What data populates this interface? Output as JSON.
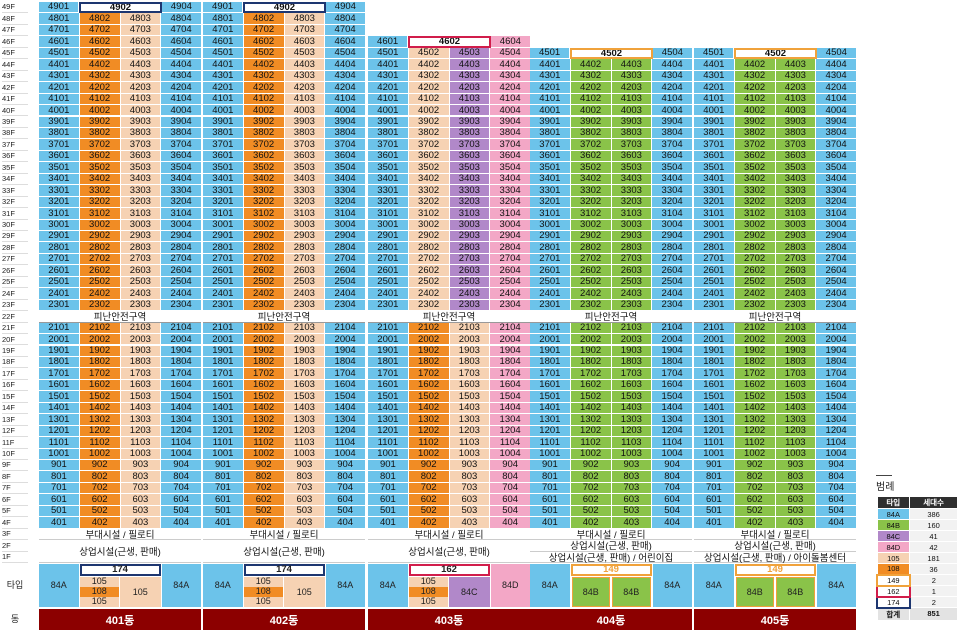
{
  "colors": {
    "84A": "#6cc3ea",
    "84B": "#8ac349",
    "84C": "#b188c9",
    "84D": "#f3a7c6",
    "105": "#f6d2b3",
    "108": "#f18c24",
    "149": "#f0a23b",
    "162": "#d11d4b",
    "174": "#1d3670",
    "dong_bg": "#8c0000"
  },
  "floor_labels": {
    "tower": [
      "49F",
      "48F",
      "47F",
      "46F",
      "45F",
      "44F",
      "43F",
      "42F",
      "41F",
      "40F",
      "39F",
      "38F",
      "37F",
      "36F",
      "35F",
      "34F",
      "33F",
      "32F",
      "31F",
      "30F",
      "29F",
      "28F",
      "27F",
      "26F",
      "25F",
      "24F",
      "23F",
      "22F",
      "21F",
      "20F",
      "19F",
      "18F",
      "17F",
      "16F",
      "15F",
      "14F",
      "13F",
      "12F",
      "11F",
      "10F",
      "9F",
      "8F",
      "7F",
      "6F",
      "5F",
      "4F",
      "3F",
      "2F",
      "1F"
    ],
    "type_row": "타입",
    "dong_row": "동"
  },
  "refuge_label": "피난안전구역",
  "buildings": [
    {
      "name": "401동",
      "top_floor": 49,
      "top_row": [
        "4901",
        "4902",
        "",
        "4904"
      ],
      "top_highlight": "nav",
      "col_types": [
        "84A",
        "108",
        "105",
        "84A"
      ],
      "lower_col_types": [
        "84A",
        "108",
        "105",
        "84A"
      ],
      "third_floor": "부대시설 / 필로티",
      "commercial": [
        "상업시설(근생, 판매)"
      ],
      "type_block": {
        "header": "174",
        "header_color": "nav",
        "left": "84A",
        "right": "84A",
        "stack": [
          "105",
          "108",
          "105"
        ],
        "side": "105"
      }
    },
    {
      "name": "402동",
      "top_floor": 49,
      "top_row": [
        "4901",
        "4902",
        "",
        "4904"
      ],
      "top_highlight": "nav",
      "col_types": [
        "84A",
        "108",
        "105",
        "84A"
      ],
      "lower_col_types": [
        "84A",
        "108",
        "105",
        "84A"
      ],
      "third_floor": "부대시설 / 필로티",
      "commercial": [
        "상업시설(근생, 판매)"
      ],
      "type_block": {
        "header": "174",
        "header_color": "nav",
        "left": "84A",
        "right": "84A",
        "stack": [
          "105",
          "108",
          "105"
        ],
        "side": "105"
      }
    },
    {
      "name": "403동",
      "top_floor": 46,
      "top_row": [
        "4601",
        "4602",
        "",
        "4604"
      ],
      "top_highlight": "red",
      "col_types": [
        "84A",
        "105",
        "84C",
        "84D"
      ],
      "lower_col_types": [
        "84A",
        "108",
        "105",
        "84D"
      ],
      "third_floor": "부대시설 / 필로티",
      "commercial": [
        "상업시설(근생, 판매)"
      ],
      "type_block": {
        "header": "162",
        "header_color": "red",
        "left": "84A",
        "right": "84D",
        "stack": [
          "105",
          "108",
          "105"
        ],
        "side": "84C"
      }
    },
    {
      "name": "404동",
      "top_floor": 45,
      "top_row": [
        "4501",
        "4502",
        "",
        "4504"
      ],
      "top_highlight": "ora",
      "col_types": [
        "84A",
        "84B",
        "84B",
        "84A"
      ],
      "lower_col_types": [
        "84A",
        "84B",
        "84B",
        "84A"
      ],
      "third_floor": "부대시설 / 필로티",
      "commercial": [
        "상업시설(근생, 판매)",
        "상업시설(근생, 판매) / 어린이집"
      ],
      "type_block": {
        "header": "149",
        "header_color": "ora",
        "left": "84A",
        "right": "84A",
        "mid": [
          "84B",
          "84B"
        ]
      }
    },
    {
      "name": "405동",
      "top_floor": 45,
      "top_row": [
        "4501",
        "4502",
        "",
        "4504"
      ],
      "top_highlight": "ora",
      "col_types": [
        "84A",
        "84B",
        "84B",
        "84A"
      ],
      "lower_col_types": [
        "84A",
        "84B",
        "84B",
        "84A"
      ],
      "third_floor": "부대시설 / 필로티",
      "commercial": [
        "상업시설(근생, 판매)",
        "상업시설(근생, 판매) / 아이돌봄센터"
      ],
      "type_block": {
        "header": "149",
        "header_color": "ora",
        "left": "84A",
        "right": "84A",
        "mid": [
          "84B",
          "84B"
        ]
      }
    }
  ],
  "legend": {
    "title": "범례",
    "headers": [
      "타입",
      "세대수"
    ],
    "rows": [
      {
        "type": "84A",
        "count": "386"
      },
      {
        "type": "84B",
        "count": "160"
      },
      {
        "type": "84C",
        "count": "41"
      },
      {
        "type": "84D",
        "count": "42"
      },
      {
        "type": "105",
        "count": "181"
      },
      {
        "type": "108",
        "count": "36"
      },
      {
        "type": "149",
        "count": "2"
      },
      {
        "type": "162",
        "count": "1"
      },
      {
        "type": "174",
        "count": "2"
      }
    ],
    "total_label": "합계",
    "total": "851"
  }
}
